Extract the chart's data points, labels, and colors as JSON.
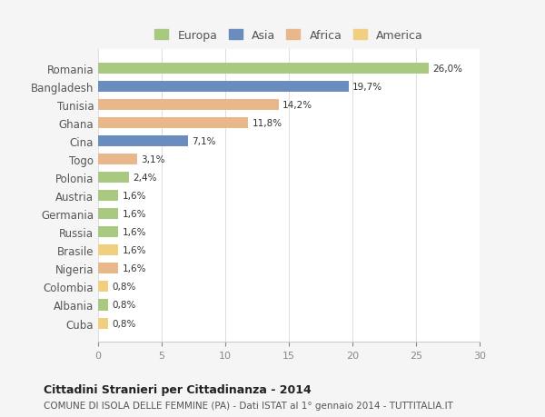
{
  "countries": [
    "Romania",
    "Bangladesh",
    "Tunisia",
    "Ghana",
    "Cina",
    "Togo",
    "Polonia",
    "Austria",
    "Germania",
    "Russia",
    "Brasile",
    "Nigeria",
    "Colombia",
    "Albania",
    "Cuba"
  ],
  "values": [
    26.0,
    19.7,
    14.2,
    11.8,
    7.1,
    3.1,
    2.4,
    1.6,
    1.6,
    1.6,
    1.6,
    1.6,
    0.8,
    0.8,
    0.8
  ],
  "labels": [
    "26,0%",
    "19,7%",
    "14,2%",
    "11,8%",
    "7,1%",
    "3,1%",
    "2,4%",
    "1,6%",
    "1,6%",
    "1,6%",
    "1,6%",
    "1,6%",
    "0,8%",
    "0,8%",
    "0,8%"
  ],
  "continents": [
    "Europa",
    "Asia",
    "Africa",
    "Africa",
    "Asia",
    "Africa",
    "Europa",
    "Europa",
    "Europa",
    "Europa",
    "America",
    "Africa",
    "America",
    "Europa",
    "America"
  ],
  "colors": {
    "Europa": "#a8c97f",
    "Asia": "#6b8cbf",
    "Africa": "#e8b88a",
    "America": "#f0d080"
  },
  "legend_order": [
    "Europa",
    "Asia",
    "Africa",
    "America"
  ],
  "xlim": [
    0,
    30
  ],
  "xticks": [
    0,
    5,
    10,
    15,
    20,
    25,
    30
  ],
  "title": "Cittadini Stranieri per Cittadinanza - 2014",
  "subtitle": "COMUNE DI ISOLA DELLE FEMMINE (PA) - Dati ISTAT al 1° gennaio 2014 - TUTTITALIA.IT",
  "bg_color": "#f5f5f5",
  "plot_bg_color": "#ffffff"
}
